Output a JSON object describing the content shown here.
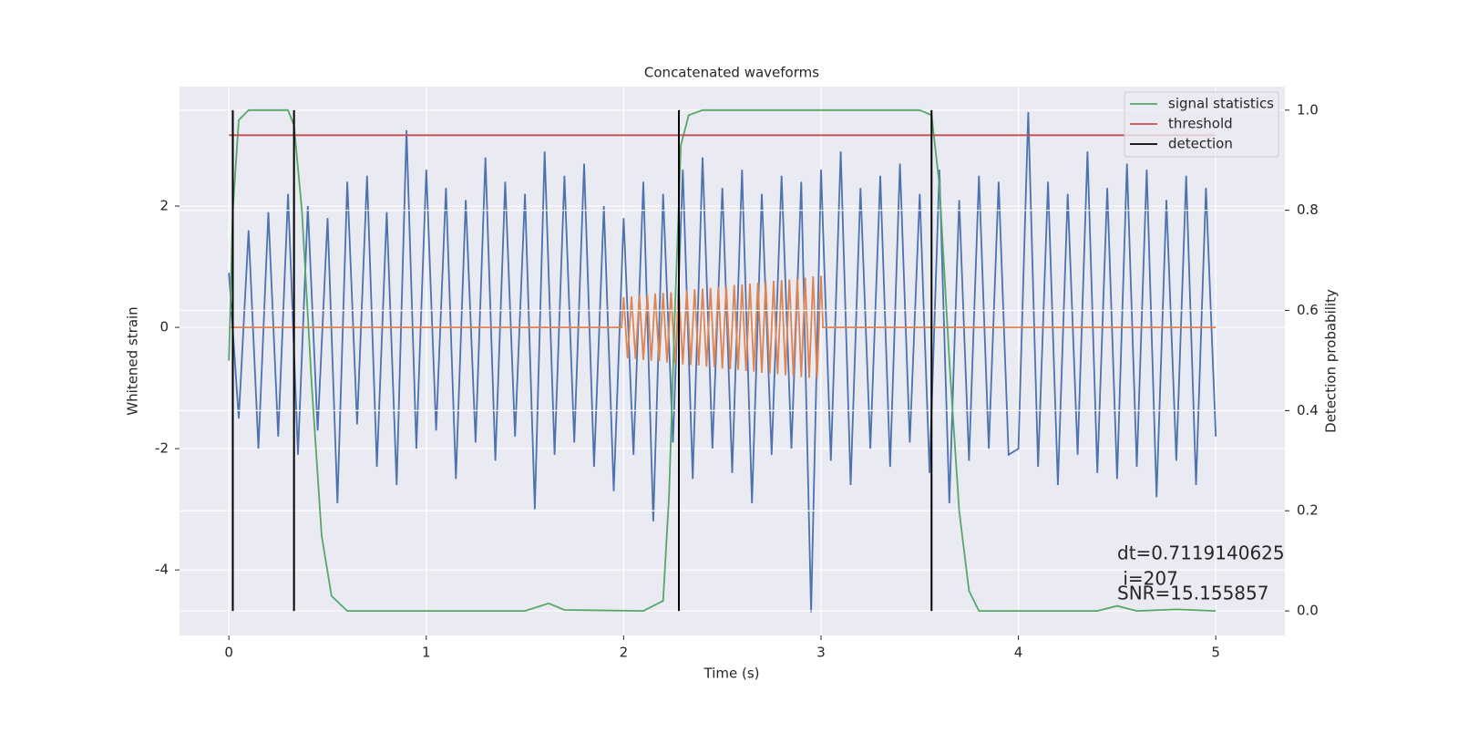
{
  "chart_data": {
    "type": "line",
    "title": "Concatenated waveforms",
    "x_label": "Time (s)",
    "y_label": "Whitened strain",
    "y2_label": "Detection probability",
    "xlim": [
      -0.25,
      5.35
    ],
    "xticks": [
      0,
      1,
      2,
      3,
      4,
      5
    ],
    "ylim": [
      -5.08,
      3.97
    ],
    "yticks": [
      -4,
      -2,
      0,
      2
    ],
    "y2lim": [
      -0.049,
      1.047
    ],
    "y2ticks": [
      {
        "value": 0,
        "label": "0.0"
      },
      0.2,
      0.4,
      0.6,
      0.8,
      {
        "value": 1,
        "label": "1.0"
      }
    ],
    "grid": true,
    "legend": "upper right",
    "annotations": [
      "dt=0.7119140625",
      " i=207",
      "SNR=15.155857"
    ],
    "series": [
      {
        "color": "#4c72b0",
        "axis": "y",
        "kind": "line",
        "x": [
          0,
          0.05,
          0.1,
          0.15,
          0.2,
          0.25,
          0.3,
          0.35,
          0.4,
          0.45,
          0.5,
          0.55,
          0.6,
          0.65,
          0.7,
          0.75,
          0.8,
          0.85,
          0.9,
          0.95,
          1,
          1.05,
          1.1,
          1.15,
          1.2,
          1.25,
          1.3,
          1.35,
          1.4,
          1.45,
          1.5,
          1.55,
          1.6,
          1.65,
          1.7,
          1.75,
          1.8,
          1.85,
          1.9,
          1.95,
          2,
          2.05,
          2.1,
          2.15,
          2.2,
          2.25,
          2.3,
          2.35,
          2.4,
          2.45,
          2.5,
          2.55,
          2.6,
          2.65,
          2.7,
          2.75,
          2.8,
          2.85,
          2.9,
          2.95,
          3,
          3.05,
          3.1,
          3.15,
          3.2,
          3.25,
          3.3,
          3.35,
          3.4,
          3.45,
          3.5,
          3.55,
          3.6,
          3.65,
          3.7,
          3.75,
          3.8,
          3.85,
          3.9,
          3.95,
          4,
          4.05,
          4.1,
          4.15,
          4.2,
          4.25,
          4.3,
          4.35,
          4.4,
          4.45,
          4.5,
          4.55,
          4.6,
          4.65,
          4.7,
          4.75,
          4.8,
          4.85,
          4.9,
          4.95,
          5
        ],
        "values": [
          0.9,
          -1.5,
          1.6,
          -2.0,
          1.9,
          -1.8,
          2.2,
          -2.1,
          2.0,
          -1.7,
          1.8,
          -2.9,
          2.4,
          -1.6,
          2.5,
          -2.3,
          1.9,
          -2.6,
          3.25,
          -2.0,
          2.6,
          -1.7,
          2.3,
          -2.5,
          2.1,
          -1.9,
          2.8,
          -2.2,
          2.4,
          -1.8,
          2.2,
          -3.0,
          2.9,
          -2.1,
          2.5,
          -1.9,
          2.7,
          -2.3,
          2.0,
          -2.7,
          1.8,
          -2.1,
          2.4,
          -3.2,
          2.2,
          -1.9,
          2.6,
          -2.5,
          2.8,
          -2.0,
          2.3,
          -2.4,
          2.6,
          -2.9,
          2.2,
          -2.1,
          2.5,
          -2.0,
          2.4,
          -4.7,
          2.6,
          -2.2,
          2.9,
          -2.6,
          2.3,
          -2.0,
          2.5,
          -2.3,
          2.7,
          -1.9,
          2.2,
          -2.4,
          2.6,
          -2.9,
          2.1,
          -2.2,
          2.5,
          -2.0,
          2.4,
          -2.1,
          -2.0,
          3.55,
          -2.3,
          2.4,
          -2.6,
          2.2,
          -2.1,
          2.9,
          -2.4,
          2.3,
          -2.5,
          2.7,
          -2.3,
          2.6,
          -2.8,
          2.1,
          -2.2,
          2.5,
          -2.6,
          2.3,
          -1.8
        ]
      },
      {
        "color": "#dd8452",
        "axis": "y",
        "kind": "line",
        "x": [
          0,
          1.99,
          2,
          2.02,
          2.04,
          2.06,
          2.08,
          2.1,
          2.12,
          2.14,
          2.16,
          2.18,
          2.2,
          2.22,
          2.24,
          2.26,
          2.28,
          2.3,
          2.32,
          2.34,
          2.36,
          2.38,
          2.4,
          2.42,
          2.44,
          2.46,
          2.48,
          2.5,
          2.52,
          2.54,
          2.56,
          2.58,
          2.6,
          2.62,
          2.64,
          2.66,
          2.68,
          2.7,
          2.72,
          2.74,
          2.76,
          2.78,
          2.8,
          2.82,
          2.84,
          2.86,
          2.88,
          2.9,
          2.92,
          2.94,
          2.96,
          2.98,
          3,
          3.01,
          5
        ],
        "values": [
          0,
          0,
          0.5,
          -0.51,
          0.51,
          -0.52,
          0.53,
          -0.54,
          0.54,
          -0.55,
          0.56,
          -0.56,
          0.57,
          -0.58,
          0.58,
          -0.59,
          0.6,
          -0.61,
          0.61,
          -0.62,
          0.63,
          -0.63,
          0.64,
          -0.65,
          0.65,
          -0.66,
          0.67,
          -0.68,
          0.68,
          -0.69,
          0.7,
          -0.7,
          0.71,
          -0.72,
          0.72,
          -0.73,
          0.74,
          -0.75,
          0.75,
          -0.76,
          0.77,
          -0.77,
          0.78,
          -0.79,
          0.79,
          -0.8,
          0.81,
          -0.82,
          0.82,
          -0.83,
          0.84,
          -0.84,
          0.85,
          0,
          0
        ]
      },
      {
        "name": "signal statistics",
        "color": "#55a868",
        "axis": "y2",
        "kind": "line",
        "x": [
          0,
          0.02,
          0.05,
          0.1,
          0.3,
          0.33,
          0.37,
          0.42,
          0.47,
          0.52,
          0.6,
          1.5,
          1.62,
          1.7,
          2.1,
          2.2,
          2.23,
          2.26,
          2.29,
          2.33,
          2.4,
          3.5,
          3.56,
          3.6,
          3.65,
          3.7,
          3.75,
          3.8,
          4.4,
          4.5,
          4.6,
          4.8,
          5
        ],
        "values": [
          0.5,
          0.8,
          0.98,
          1.0,
          1.0,
          0.97,
          0.8,
          0.45,
          0.15,
          0.03,
          0.0,
          0.0,
          0.015,
          0.002,
          0.0,
          0.02,
          0.23,
          0.6,
          0.93,
          0.99,
          1.0,
          1.0,
          0.99,
          0.85,
          0.5,
          0.2,
          0.04,
          0.0,
          0.0,
          0.01,
          0.0,
          0.003,
          0.0
        ]
      },
      {
        "name": "threshold",
        "color": "#c44e52",
        "axis": "y2",
        "kind": "line",
        "x": [
          0,
          5
        ],
        "values": [
          0.95,
          0.95
        ]
      },
      {
        "name": "detection",
        "color": "#000000",
        "axis": "y2",
        "kind": "vline",
        "x": [
          0.02,
          0.33,
          2.28,
          3.56
        ],
        "values": [
          1,
          1,
          1,
          1
        ]
      }
    ]
  }
}
